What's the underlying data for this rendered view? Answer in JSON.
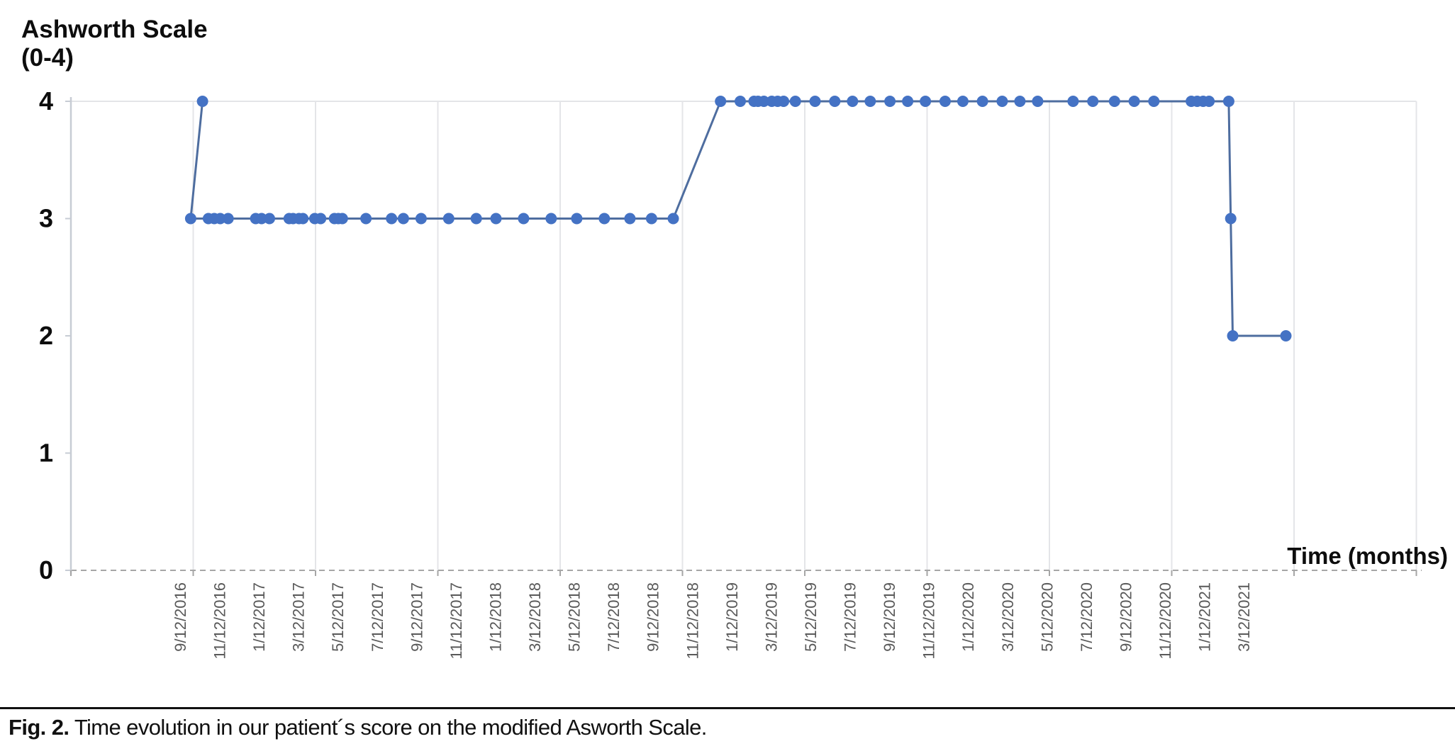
{
  "chart": {
    "title_line1": "Ashworth Scale",
    "title_line2": "(0-4)"
  },
  "chart_data": {
    "type": "line",
    "title": "Ashworth Scale (0-4)",
    "xlabel": "Time (months)",
    "ylabel": "Ashworth Scale (0-4)",
    "x_unit": "months since 9/12/2016, bimonthly tick labels",
    "ylim": [
      0,
      4
    ],
    "y_ticks": [
      4,
      3,
      2,
      1,
      0
    ],
    "x_tick_months": [
      0,
      2,
      4,
      6,
      8,
      10,
      12,
      14,
      16,
      18,
      20,
      22,
      24,
      26,
      28,
      30,
      32,
      34,
      36,
      38,
      40,
      42,
      44,
      46,
      48,
      50,
      52,
      54
    ],
    "x_tick_labels": [
      "9/12/2016",
      "11/12/2016",
      "1/12/2017",
      "3/12/2017",
      "5/12/2017",
      "7/12/2017",
      "9/12/2017",
      "11/12/2017",
      "1/12/2018",
      "3/12/2018",
      "5/12/2018",
      "7/12/2018",
      "9/12/2018",
      "11/12/2018",
      "1/12/2019",
      "3/12/2019",
      "5/12/2019",
      "7/12/2019",
      "9/12/2019",
      "11/12/2019",
      "1/12/2020",
      "3/12/2020",
      "5/12/2020",
      "7/12/2020",
      "9/12/2020",
      "11/12/2020",
      "1/12/2021",
      "3/12/2021"
    ],
    "grid": "vertical-gridlines-plus-top-border, dashed zero baseline",
    "legend": "none",
    "series": [
      {
        "name": "Modified Ashworth Scale score",
        "color": "#4472C4",
        "points": [
          [
            1.1,
            4
          ],
          [
            0.5,
            3
          ],
          [
            1.4,
            3
          ],
          [
            1.7,
            3
          ],
          [
            2.0,
            3
          ],
          [
            2.4,
            3
          ],
          [
            3.8,
            3
          ],
          [
            4.1,
            3
          ],
          [
            4.5,
            3
          ],
          [
            5.5,
            3
          ],
          [
            5.7,
            3
          ],
          [
            6.0,
            3
          ],
          [
            6.2,
            3
          ],
          [
            6.8,
            3
          ],
          [
            7.1,
            3
          ],
          [
            7.8,
            3
          ],
          [
            8.0,
            3
          ],
          [
            8.2,
            3
          ],
          [
            9.4,
            3
          ],
          [
            10.7,
            3
          ],
          [
            11.3,
            3
          ],
          [
            12.2,
            3
          ],
          [
            13.6,
            3
          ],
          [
            15.0,
            3
          ],
          [
            16.0,
            3
          ],
          [
            17.4,
            3
          ],
          [
            18.8,
            3
          ],
          [
            20.1,
            3
          ],
          [
            21.5,
            3
          ],
          [
            22.8,
            3
          ],
          [
            23.9,
            3
          ],
          [
            25.0,
            3
          ],
          [
            27.4,
            4
          ],
          [
            28.4,
            4
          ],
          [
            29.1,
            4
          ],
          [
            29.3,
            4
          ],
          [
            29.6,
            4
          ],
          [
            30.0,
            4
          ],
          [
            30.3,
            4
          ],
          [
            30.6,
            4
          ],
          [
            31.2,
            4
          ],
          [
            32.2,
            4
          ],
          [
            33.2,
            4
          ],
          [
            34.1,
            4
          ],
          [
            35.0,
            4
          ],
          [
            36.0,
            4
          ],
          [
            36.9,
            4
          ],
          [
            37.8,
            4
          ],
          [
            38.8,
            4
          ],
          [
            39.7,
            4
          ],
          [
            40.7,
            4
          ],
          [
            41.7,
            4
          ],
          [
            42.6,
            4
          ],
          [
            43.5,
            4
          ],
          [
            45.3,
            4
          ],
          [
            46.3,
            4
          ],
          [
            47.4,
            4
          ],
          [
            48.4,
            4
          ],
          [
            49.4,
            4
          ],
          [
            51.3,
            4
          ],
          [
            51.6,
            4
          ],
          [
            51.9,
            4
          ],
          [
            52.2,
            4
          ],
          [
            53.2,
            4
          ],
          [
            53.3,
            3
          ],
          [
            53.4,
            2
          ],
          [
            56.1,
            2
          ]
        ]
      }
    ]
  },
  "caption": {
    "label": "Fig. 2.",
    "text": " Time evolution in our patient´s score on the modified Asworth Scale."
  },
  "colors": {
    "point": "#4472C4",
    "line": "#4e6d9f",
    "grid": "#e4e5e8",
    "axis": "#c7ccd4",
    "baseline_dash": "#a6a6a6",
    "x_tick_text": "#595959",
    "y_tick_text": "#0d0d0d"
  }
}
